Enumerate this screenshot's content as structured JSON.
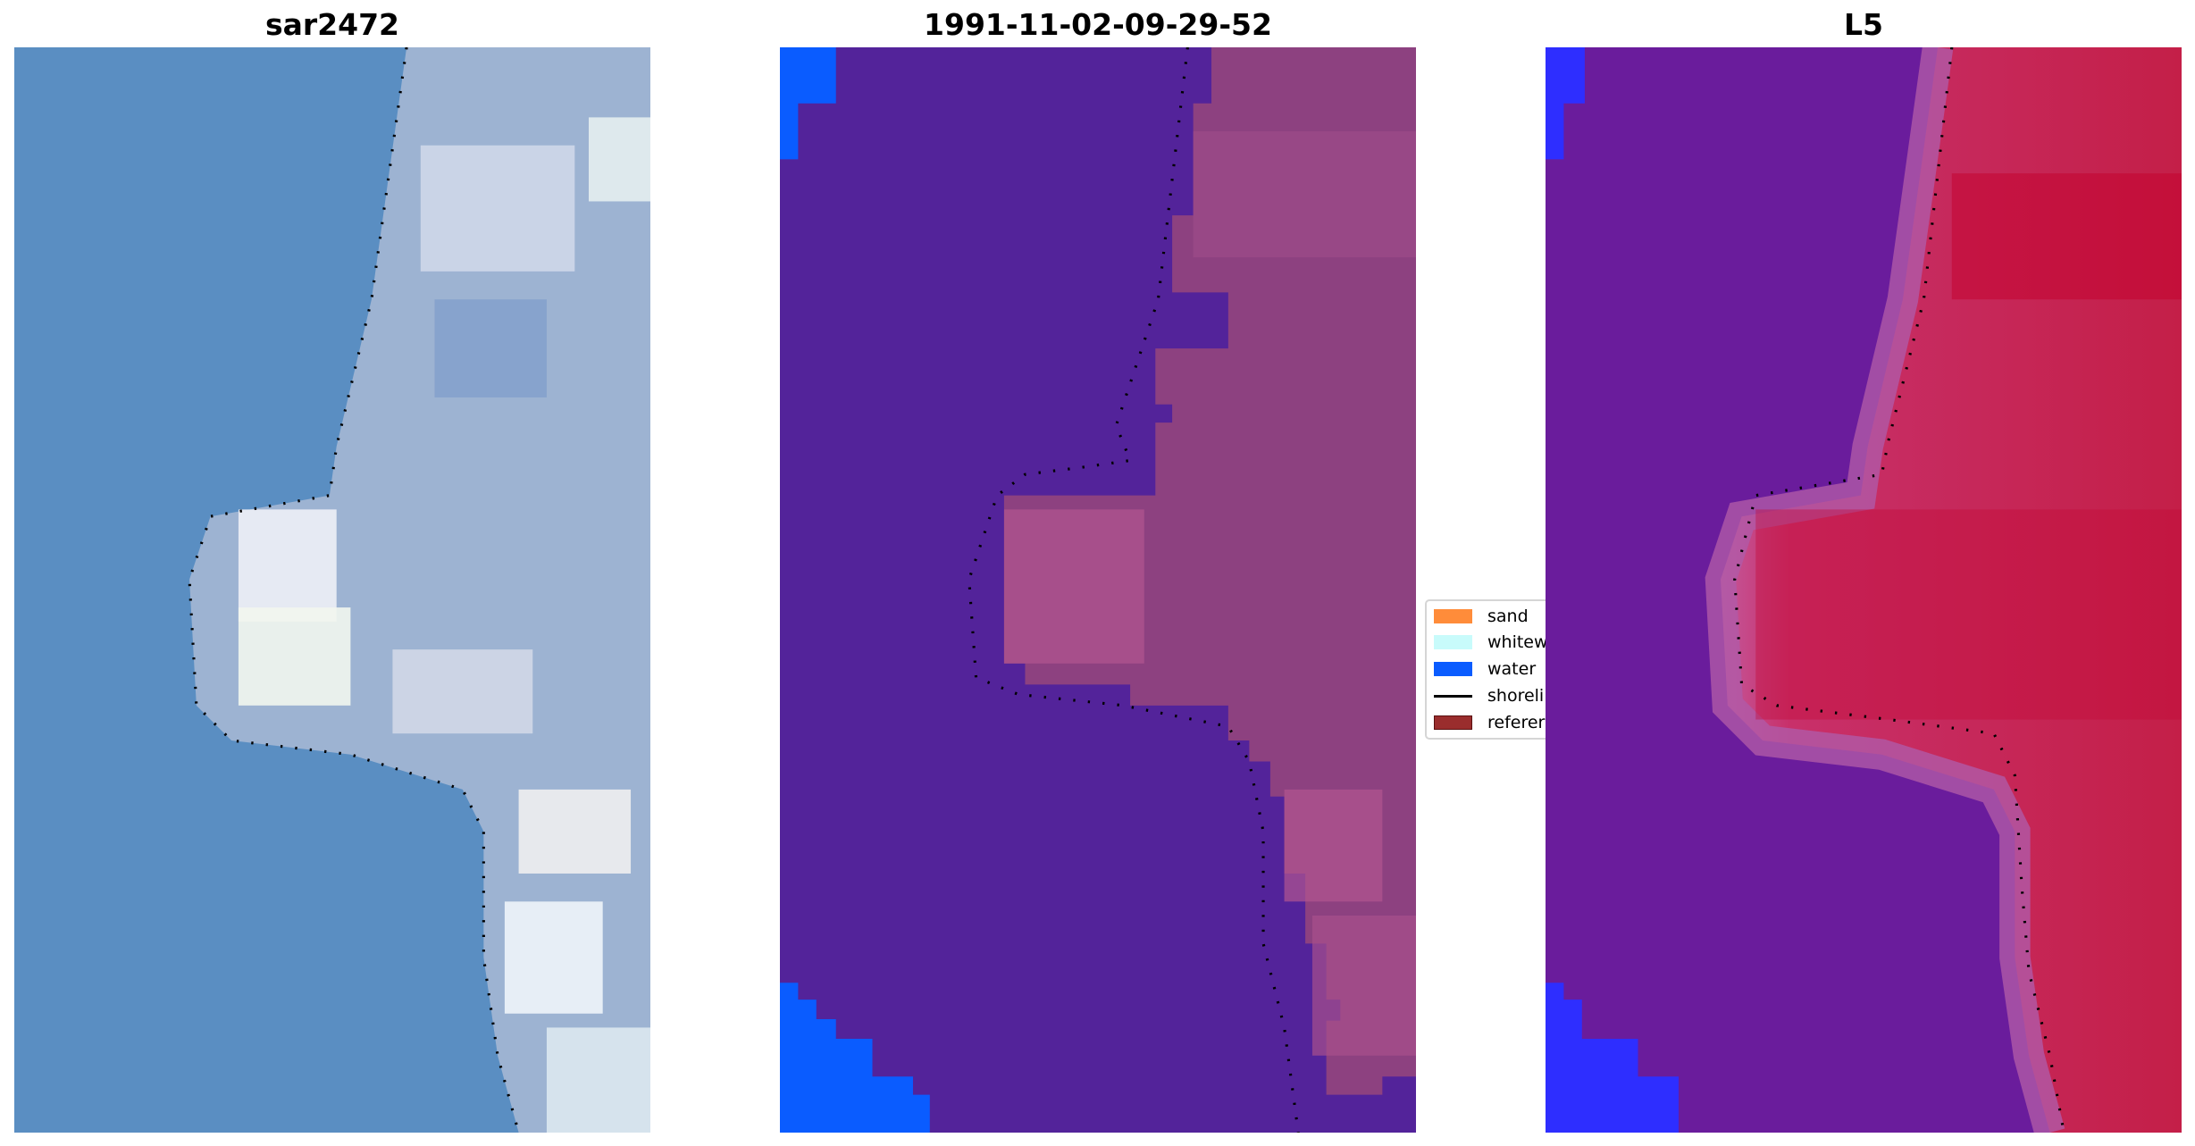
{
  "panels": [
    {
      "title": "sar2472"
    },
    {
      "title": "1991-11-02-09-29-52"
    },
    {
      "title": "L5"
    }
  ],
  "legend": {
    "items": [
      {
        "label": "sand",
        "color": "#ff8c3a",
        "kind": "patch"
      },
      {
        "label": "whitew",
        "color": "#c8fbfb",
        "kind": "patch"
      },
      {
        "label": "water",
        "color": "#0a5cff",
        "kind": "patch"
      },
      {
        "label": "shoreli",
        "color": "#000000",
        "kind": "line"
      },
      {
        "label": "referer",
        "color": "#9a2d2d",
        "kind": "patch"
      }
    ]
  },
  "colors": {
    "rgb_water": "#5a8ec2",
    "rgb_land": "#9db3d2",
    "class_water": "#53239a",
    "class_land": "#8d4180",
    "index_water": "#6a1c9c",
    "index_land": "#c4204c",
    "index_blue": "#2e2eff"
  }
}
